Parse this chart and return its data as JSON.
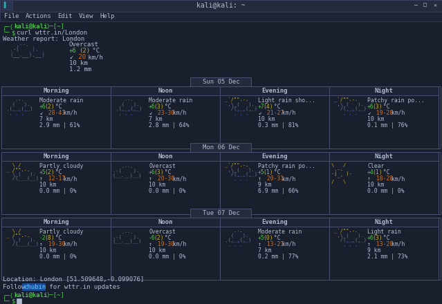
{
  "title": "kali@kali: ~",
  "bg_color": "#1a1f2e",
  "panel_bg": "#1e2435",
  "cell_bg": "#1a1f2e",
  "border_color": "#4a5070",
  "header_bg": "#252b3d",
  "daylabel_bg": "#2a3048",
  "text_white": "#b0bcd0",
  "text_green": "#50c050",
  "text_yellow": "#c8b020",
  "text_orange": "#d07020",
  "text_blue": "#4070d0",
  "text_cyan": "#30b0b0",
  "text_dim": "#606880",
  "menubar_items": [
    "File",
    "Actions",
    "Edit",
    "View",
    "Help"
  ],
  "current_weather": {
    "condition": "Overcast",
    "temp_main": "+6",
    "temp_feel": "(2)",
    "temp_unit": " °C",
    "wind_arrow": "↙",
    "wind_speed": "20",
    "wind_unit": " km/h",
    "vis": "10 km",
    "precip": "1.2 mm"
  },
  "days": [
    {
      "label": "Sun 05 Dec",
      "periods": [
        {
          "name": "Morning",
          "condition": "Moderate rain",
          "temp_main": "+6",
          "temp_feel": "(2)",
          "wind_arrow": "↙",
          "wind_range": "28-41",
          "wind_unit": " km/h",
          "vis": "7 km",
          "precip": "2.9 mm | 61%",
          "icon_type": "rain"
        },
        {
          "name": "Noon",
          "condition": "Moderate rain",
          "temp_main": "+6",
          "temp_feel": "(3)",
          "wind_arrow": "↙",
          "wind_range": "23-30",
          "wind_unit": " km/h",
          "vis": "7 km",
          "precip": "2.8 mm | 64%",
          "icon_type": "rain"
        },
        {
          "name": "Evening",
          "condition": "Light rain sho...",
          "temp_main": "+7",
          "temp_feel": "(4)",
          "wind_arrow": "↙",
          "wind_range": "21-27",
          "wind_unit": " km/h",
          "vis": "10 km",
          "precip": "0.3 mm | 81%",
          "icon_type": "lightrain"
        },
        {
          "name": "Night",
          "condition": "Patchy rain po...",
          "temp_main": "+6",
          "temp_feel": "(3)",
          "wind_arrow": "↙",
          "wind_range": "19-28",
          "wind_unit": " km/h",
          "vis": "10 km",
          "precip": "0.1 mm | 76%",
          "icon_type": "lightrain"
        }
      ]
    },
    {
      "label": "Mon 06 Dec",
      "periods": [
        {
          "name": "Morning",
          "condition": "Partly cloudy",
          "temp_main": "+5",
          "temp_feel": "(2)",
          "wind_arrow": "↑",
          "wind_range": "12-17",
          "wind_unit": " km/h",
          "vis": "10 km",
          "precip": "0.0 mm | 0%",
          "icon_type": "partlycloudy"
        },
        {
          "name": "Noon",
          "condition": "Overcast",
          "temp_main": "+6",
          "temp_feel": "(3)",
          "wind_arrow": "↑",
          "wind_range": "20-30",
          "wind_unit": " km/h",
          "vis": "10 km",
          "precip": "0.0 mm | 0%",
          "icon_type": "overcast"
        },
        {
          "name": "Evening",
          "condition": "Patchy rain po...",
          "temp_main": "+5",
          "temp_feel": "(1)",
          "wind_arrow": "↑",
          "wind_range": "20-31",
          "wind_unit": " km/h",
          "vis": "9 km",
          "precip": "6.9 mm | 66%",
          "icon_type": "lightrain"
        },
        {
          "name": "Night",
          "condition": "Clear",
          "temp_main": "+4",
          "temp_feel": "(1)",
          "wind_arrow": "↑",
          "wind_range": "18-28",
          "wind_unit": " km/h",
          "vis": "10 km",
          "precip": "0.0 mm | 0%",
          "icon_type": "clear"
        }
      ]
    },
    {
      "label": "Tue 07 Dec",
      "periods": [
        {
          "name": "Morning",
          "condition": "Partly cloudy",
          "temp_main": "-2",
          "temp_feel": "(8)",
          "wind_arrow": "↑",
          "wind_range": "19-30",
          "wind_unit": " km/h",
          "vis": "10 km",
          "precip": "0.0 mm | 0%",
          "icon_type": "partlycloudy"
        },
        {
          "name": "Noon",
          "condition": "Overcast",
          "temp_main": "-6",
          "temp_feel": "(2)",
          "wind_arrow": "↑",
          "wind_range": "19-30",
          "wind_unit": " km/h",
          "vis": "10 km",
          "precip": "0.0 mm | 0%",
          "icon_type": "overcast"
        },
        {
          "name": "Evening",
          "condition": "Moderate rain",
          "temp_main": "+5",
          "temp_feel": "(0)",
          "wind_arrow": "↑",
          "wind_range": "13-21",
          "wind_unit": " km/h",
          "vis": "7 km",
          "precip": "0.2 mm | 77%",
          "icon_type": "rain"
        },
        {
          "name": "Night",
          "condition": "Light rain",
          "temp_main": "+6",
          "temp_feel": "(3)",
          "wind_arrow": "↑",
          "wind_range": "13-20",
          "wind_unit": " km/h",
          "vis": "9 km",
          "precip": "2.1 mm | 73%",
          "icon_type": "lightrain"
        }
      ]
    }
  ],
  "location_text": "Location: London [51.509648,-0.099076]",
  "follow_prefix": "Follow ",
  "follow_handle": "chubin",
  "follow_suffix": " for wttr.in updates"
}
